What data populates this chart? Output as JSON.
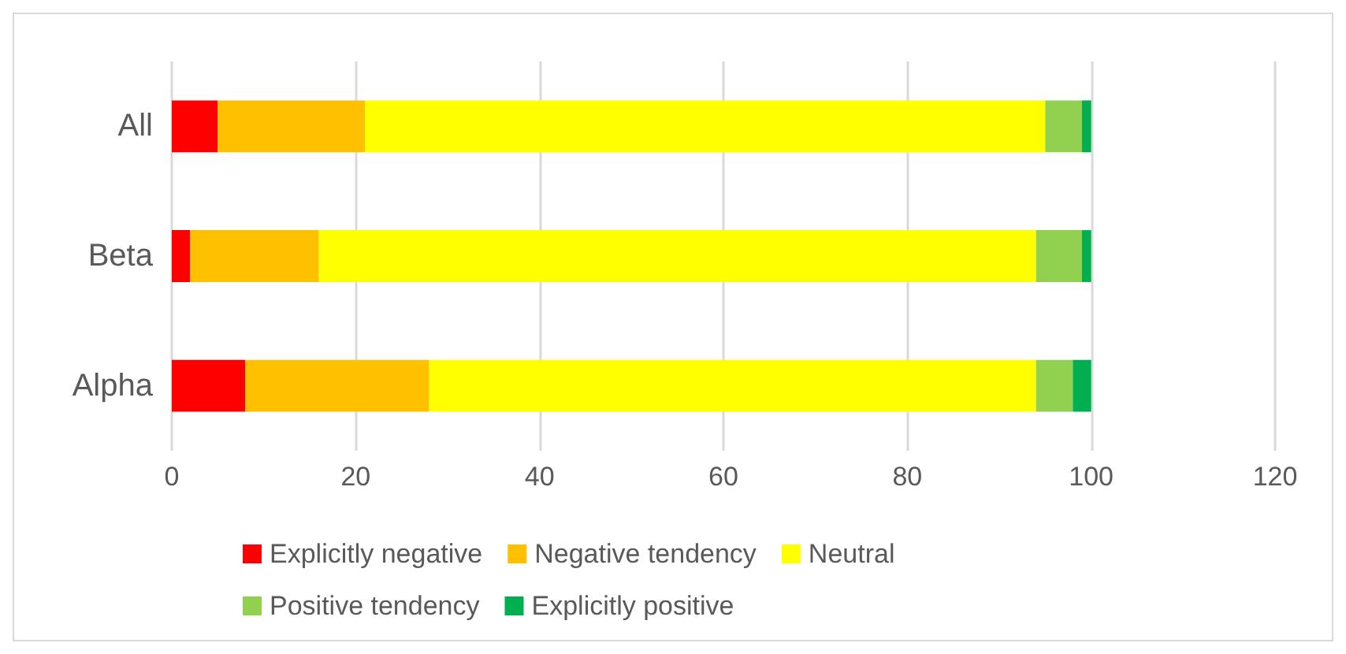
{
  "chart_data": {
    "type": "bar",
    "orientation": "horizontal",
    "stacked": true,
    "categories": [
      "All",
      "Beta",
      "Alpha"
    ],
    "series": [
      {
        "name": "Explicitly negative",
        "color": "#ff0000",
        "values": [
          5,
          2,
          8
        ]
      },
      {
        "name": "Negative tendency",
        "color": "#ffc000",
        "values": [
          16,
          14,
          20
        ]
      },
      {
        "name": "Neutral",
        "color": "#ffff00",
        "values": [
          74,
          78,
          66
        ]
      },
      {
        "name": "Positive tendency",
        "color": "#92d050",
        "values": [
          4,
          5,
          4
        ]
      },
      {
        "name": "Explicitly positive",
        "color": "#00b050",
        "values": [
          1,
          1,
          2
        ]
      }
    ],
    "xlim": [
      0,
      120
    ],
    "xticks": [
      0,
      20,
      40,
      60,
      80,
      100,
      120
    ],
    "grid": "x",
    "legend": "bottom"
  }
}
